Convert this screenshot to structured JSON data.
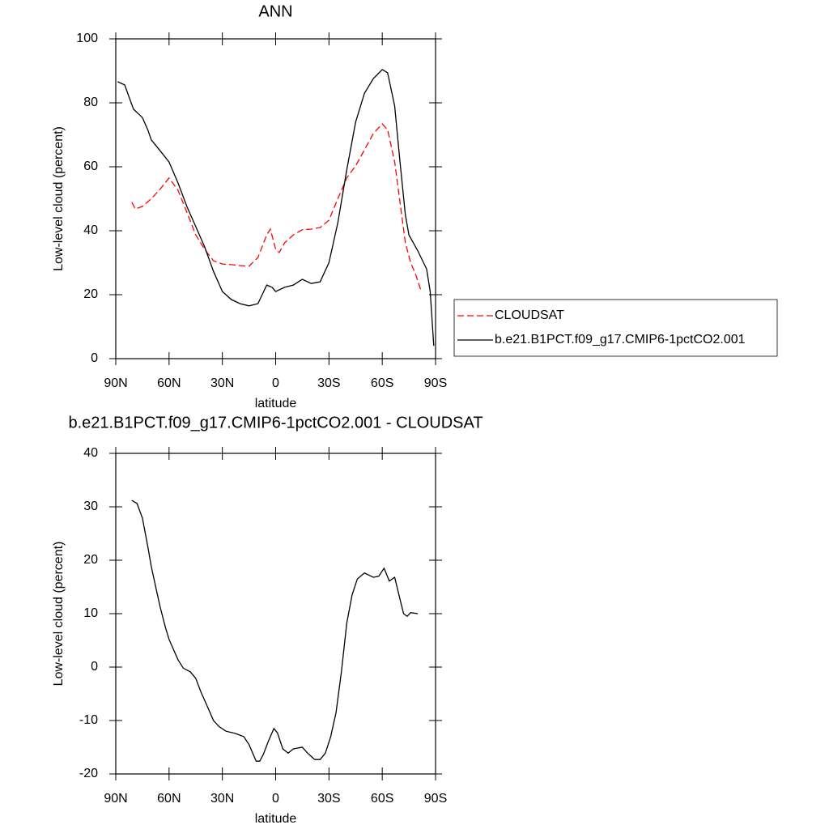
{
  "chart_data": [
    {
      "type": "line",
      "title": "ANN",
      "x_label": "latitude",
      "y_label": "Low-level cloud (percent)",
      "xlim": [
        90,
        -90
      ],
      "xticks": [
        {
          "value": 90,
          "label": "90N"
        },
        {
          "value": 60,
          "label": "60N"
        },
        {
          "value": 30,
          "label": "30N"
        },
        0,
        {
          "value": -30,
          "label": "30S"
        },
        {
          "value": -60,
          "label": "60S"
        },
        {
          "value": -90,
          "label": "90S"
        }
      ],
      "ylim": [
        0,
        100
      ],
      "yticks": [
        0,
        20,
        40,
        60,
        80,
        100
      ],
      "legend": "right",
      "series": [
        {
          "name": "CLOUDSAT",
          "color": "#ff0000",
          "dash": "dashed",
          "x": [
            81,
            79,
            75,
            70,
            65,
            60,
            55,
            50,
            45,
            40,
            35,
            30,
            25,
            20,
            15,
            10,
            5,
            3,
            0,
            -2,
            -5,
            -10,
            -15,
            -20,
            -25,
            -30,
            -35,
            -40,
            -45,
            -50,
            -55,
            -60,
            -63,
            -67,
            -70,
            -73,
            -76,
            -79,
            -82
          ],
          "values": [
            48.9,
            46.8,
            47.6,
            50,
            53,
            56.5,
            52.7,
            45.8,
            38.7,
            34.2,
            30.6,
            29.6,
            29.4,
            29.1,
            28.9,
            31.6,
            38.7,
            40.5,
            34.2,
            33.2,
            36.2,
            38.7,
            40.3,
            40.5,
            41,
            43.3,
            50,
            56.5,
            60.3,
            65.3,
            70.4,
            73.4,
            71.6,
            61.5,
            48.9,
            36.2,
            30,
            26,
            21
          ]
        },
        {
          "name": "b.e21.B1PCT.f09_g17.CMIP6-1pctCO2.001",
          "color": "#000000",
          "dash": "solid",
          "x": [
            89,
            85,
            80,
            75,
            72,
            70,
            65,
            60,
            55,
            50,
            45,
            40,
            35,
            30,
            25,
            20,
            15,
            10,
            5,
            2,
            0,
            -5,
            -10,
            -15,
            -20,
            -25,
            -30,
            -35,
            -40,
            -45,
            -50,
            -55,
            -60,
            -63,
            -67,
            -70,
            -73,
            -75,
            -80,
            -85,
            -87,
            -89
          ],
          "values": [
            86.6,
            85.6,
            78,
            75.4,
            71.6,
            68.4,
            65,
            61.5,
            55,
            47.6,
            41.3,
            35,
            27.3,
            21,
            18.5,
            17.2,
            16.5,
            17.2,
            23,
            22.3,
            21,
            22.3,
            23,
            24.8,
            23.5,
            24,
            30,
            42.5,
            59,
            74,
            83,
            87.6,
            90.4,
            89.4,
            79,
            61.5,
            45,
            38.7,
            33.7,
            28,
            21,
            4
          ]
        }
      ]
    },
    {
      "type": "line",
      "title": "b.e21.B1PCT.f09_g17.CMIP6-1pctCO2.001 - CLOUDSAT",
      "x_label": "latitude",
      "y_label": "Low-level cloud (percent)",
      "xlim": [
        90,
        -90
      ],
      "xticks": [
        {
          "value": 90,
          "label": "90N"
        },
        {
          "value": 60,
          "label": "60N"
        },
        {
          "value": 30,
          "label": "30N"
        },
        0,
        {
          "value": -30,
          "label": "30S"
        },
        {
          "value": -60,
          "label": "60S"
        },
        {
          "value": -90,
          "label": "90S"
        }
      ],
      "ylim": [
        -20,
        40
      ],
      "yticks": [
        -20,
        -10,
        0,
        10,
        20,
        30,
        40
      ],
      "series": [
        {
          "color": "#000000",
          "dash": "solid",
          "x": [
            81,
            78,
            75,
            72,
            70,
            67,
            65,
            62,
            60,
            55,
            52,
            48,
            45,
            42,
            38,
            35,
            32,
            28,
            23,
            18,
            15,
            11,
            9,
            7,
            4,
            1,
            -1,
            -4,
            -7,
            -10,
            -15,
            -18,
            -22,
            -25,
            -28,
            -31,
            -34,
            -37,
            -40,
            -43,
            -46,
            -50,
            -55,
            -58,
            -61,
            -64,
            -67,
            -70,
            -72,
            -74,
            -76,
            -80
          ],
          "values": [
            31.2,
            30.6,
            27.9,
            22.6,
            18.8,
            14.2,
            11.2,
            7.4,
            5.2,
            1.4,
            -0.2,
            -0.9,
            -2.1,
            -4.7,
            -7.7,
            -10,
            -11.1,
            -12,
            -12.4,
            -13,
            -14.5,
            -17.6,
            -17.6,
            -16.4,
            -13.8,
            -11.5,
            -12.3,
            -15.3,
            -16.1,
            -15.3,
            -15,
            -16.1,
            -17.3,
            -17.3,
            -16.1,
            -13,
            -8.5,
            -0.9,
            8.2,
            13.5,
            16.5,
            17.6,
            16.8,
            17,
            18.5,
            16.1,
            16.8,
            12.7,
            10,
            9.5,
            10.2,
            10
          ]
        }
      ]
    }
  ]
}
